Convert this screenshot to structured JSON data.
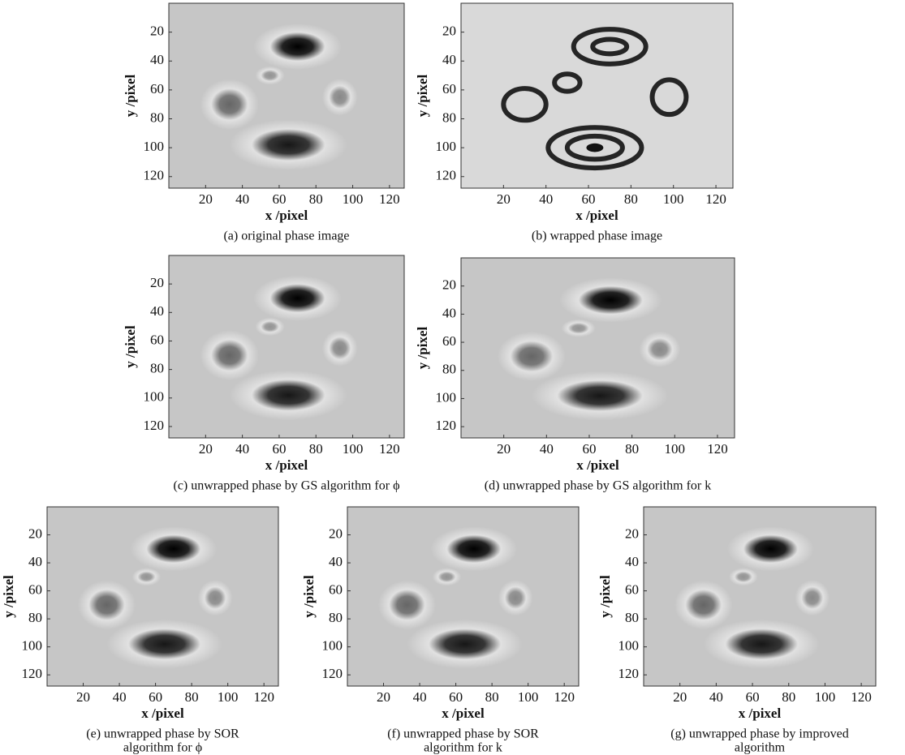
{
  "chart_data": [
    {
      "type": "image",
      "wrapped": false,
      "xlabel": "x /pixel",
      "ylabel": "y /pixel",
      "caption": [
        "(a) original phase image"
      ],
      "xlim": [
        0,
        128
      ],
      "ylim": [
        0,
        128
      ],
      "y_inverted": true,
      "xticks": [
        20,
        40,
        60,
        80,
        100,
        120
      ],
      "yticks": [
        20,
        40,
        60,
        80,
        100,
        120
      ]
    },
    {
      "type": "image",
      "wrapped": true,
      "xlabel": "x /pixel",
      "ylabel": "y /pixel",
      "caption": [
        "(b) wrapped phase image"
      ],
      "xlim": [
        0,
        128
      ],
      "ylim": [
        0,
        128
      ],
      "y_inverted": true,
      "xticks": [
        20,
        40,
        60,
        80,
        100,
        120
      ],
      "yticks": [
        20,
        40,
        60,
        80,
        100,
        120
      ]
    },
    {
      "type": "image",
      "wrapped": false,
      "xlabel": "x /pixel",
      "ylabel": "y /pixel",
      "caption": [
        "(c) unwrapped phase by GS algorithm for ϕ"
      ],
      "xlim": [
        0,
        128
      ],
      "ylim": [
        0,
        128
      ],
      "y_inverted": true,
      "xticks": [
        20,
        40,
        60,
        80,
        100,
        120
      ],
      "yticks": [
        20,
        40,
        60,
        80,
        100,
        120
      ]
    },
    {
      "type": "image",
      "wrapped": false,
      "xlabel": "x /pixel",
      "ylabel": "y /pixel",
      "caption": [
        "(d) unwrapped phase by GS algorithm for k"
      ],
      "xlim": [
        0,
        128
      ],
      "ylim": [
        0,
        128
      ],
      "y_inverted": true,
      "xticks": [
        20,
        40,
        60,
        80,
        100,
        120
      ],
      "yticks": [
        20,
        40,
        60,
        80,
        100,
        120
      ]
    },
    {
      "type": "image",
      "wrapped": false,
      "xlabel": "x /pixel",
      "ylabel": "y /pixel",
      "caption": [
        "(e) unwrapped phase by SOR",
        "algorithm for ϕ"
      ],
      "xlim": [
        0,
        128
      ],
      "ylim": [
        0,
        128
      ],
      "y_inverted": true,
      "xticks": [
        20,
        40,
        60,
        80,
        100,
        120
      ],
      "yticks": [
        20,
        40,
        60,
        80,
        100,
        120
      ]
    },
    {
      "type": "image",
      "wrapped": false,
      "xlabel": "x /pixel",
      "ylabel": "y /pixel",
      "caption": [
        "(f) unwrapped phase by SOR",
        "algorithm for k"
      ],
      "xlim": [
        0,
        128
      ],
      "ylim": [
        0,
        128
      ],
      "y_inverted": true,
      "xticks": [
        20,
        40,
        60,
        80,
        100,
        120
      ],
      "yticks": [
        20,
        40,
        60,
        80,
        100,
        120
      ]
    },
    {
      "type": "image",
      "wrapped": false,
      "xlabel": "x /pixel",
      "ylabel": "y /pixel",
      "caption": [
        "(g) unwrapped phase by improved",
        "algorithm"
      ],
      "xlim": [
        0,
        128
      ],
      "ylim": [
        0,
        128
      ],
      "y_inverted": true,
      "xticks": [
        20,
        40,
        60,
        80,
        100,
        120
      ],
      "yticks": [
        20,
        40,
        60,
        80,
        100,
        120
      ]
    }
  ]
}
